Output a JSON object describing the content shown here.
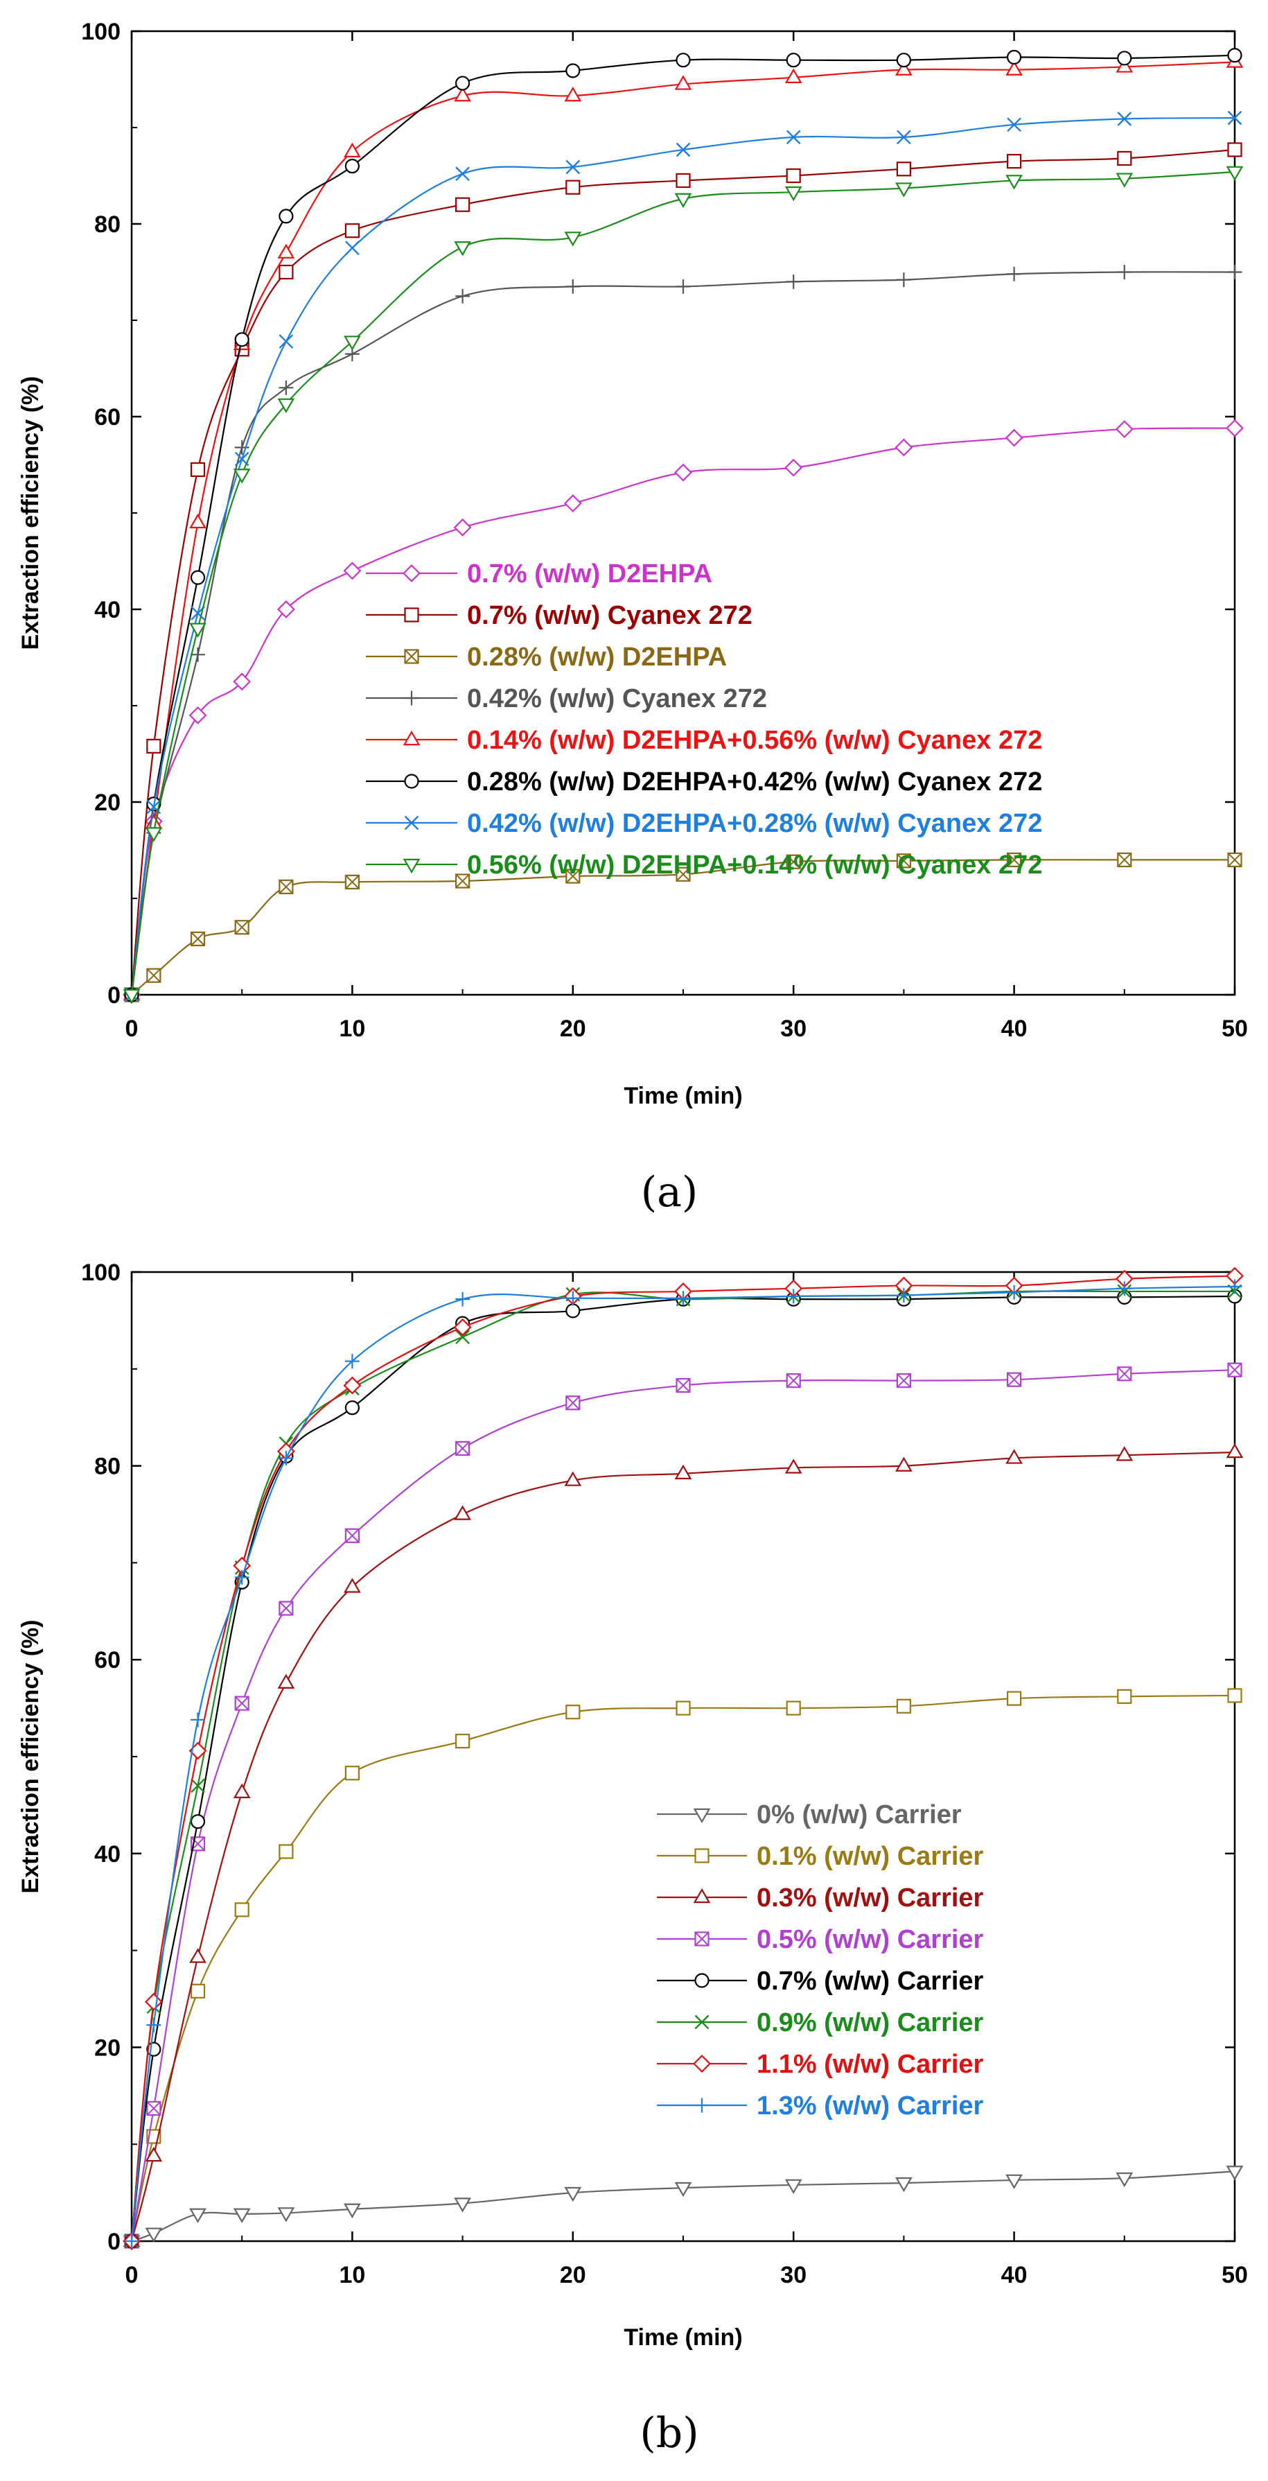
{
  "chart_data": [
    {
      "type": "line",
      "caption": "(a)",
      "xlabel": "Time (min)",
      "ylabel": "Extraction efficiency (%)",
      "xlim": [
        0,
        50
      ],
      "ylim": [
        0,
        100
      ],
      "xticks": [
        0,
        10,
        20,
        30,
        40,
        50
      ],
      "yticks": [
        0,
        20,
        40,
        60,
        80,
        100
      ],
      "legend_position": "center-right",
      "x": [
        0,
        1,
        3,
        5,
        7,
        10,
        15,
        20,
        25,
        30,
        35,
        40,
        45,
        50
      ],
      "series": [
        {
          "name": "0.7% (w/w) D2EHPA",
          "color": "#CC33CC",
          "marker": "diamond",
          "values": [
            0,
            18,
            29,
            32.5,
            40,
            44,
            48.5,
            51,
            54.2,
            54.7,
            56.8,
            57.8,
            58.7,
            58.8
          ]
        },
        {
          "name": "0.7% (w/w) Cyanex 272",
          "color": "#990000",
          "marker": "square",
          "values": [
            0,
            25.8,
            54.5,
            67,
            75,
            79.3,
            82,
            83.8,
            84.5,
            85,
            85.7,
            86.5,
            86.8,
            87.7
          ]
        },
        {
          "name": "0.28% (w/w) D2EHPA",
          "color": "#8B6914",
          "marker": "square-x",
          "values": [
            0,
            2,
            5.8,
            7,
            11.2,
            11.7,
            11.8,
            12.3,
            12.5,
            13.8,
            13.9,
            14,
            14,
            14
          ]
        },
        {
          "name": "0.42% (w/w) Cyanex 272",
          "color": "#555555",
          "marker": "plus",
          "values": [
            0,
            16.8,
            35.3,
            56.8,
            63,
            66.5,
            72.5,
            73.5,
            73.5,
            74,
            74.2,
            74.8,
            75,
            75
          ]
        },
        {
          "name": "0.14% (w/w) D2EHPA+0.56% (w/w) Cyanex 272",
          "color": "#EE1111",
          "marker": "triangle-up",
          "values": [
            0,
            17.8,
            49,
            67.5,
            77,
            87.5,
            93.3,
            93.3,
            94.5,
            95.2,
            96,
            96,
            96.3,
            96.8
          ]
        },
        {
          "name": "0.28% (w/w) D2EHPA+0.42% (w/w) Cyanex 272",
          "color": "#000000",
          "marker": "circle",
          "values": [
            0,
            19.8,
            43.3,
            68,
            80.8,
            86,
            94.6,
            95.9,
            97,
            97,
            97,
            97.3,
            97.2,
            97.5
          ]
        },
        {
          "name": "0.42% (w/w) D2EHPA+0.28% (w/w) Cyanex 272",
          "color": "#1E7FE0",
          "marker": "x",
          "values": [
            0,
            19.5,
            39.6,
            55.6,
            67.8,
            77.5,
            85.2,
            85.9,
            87.7,
            89,
            89,
            90.3,
            90.9,
            91
          ]
        },
        {
          "name": "0.56% (w/w) D2EHPA+0.14% (w/w) Cyanex 272",
          "color": "#1A8C1A",
          "marker": "triangle-down",
          "values": [
            0,
            16.8,
            38,
            54,
            61.3,
            67.8,
            77.6,
            78.6,
            82.6,
            83.3,
            83.7,
            84.5,
            84.7,
            85.4
          ]
        }
      ]
    },
    {
      "type": "line",
      "caption": "(b)",
      "xlabel": "Time (min)",
      "ylabel": "Extraction efficiency (%)",
      "xlim": [
        0,
        50
      ],
      "ylim": [
        0,
        100
      ],
      "xticks": [
        0,
        10,
        20,
        30,
        40,
        50
      ],
      "yticks": [
        0,
        20,
        40,
        60,
        80,
        100
      ],
      "legend_position": "center-right",
      "x": [
        0,
        1,
        3,
        5,
        7,
        10,
        15,
        20,
        25,
        30,
        35,
        40,
        45,
        50
      ],
      "series": [
        {
          "name": "0% (w/w) Carrier",
          "color": "#666666",
          "marker": "triangle-down",
          "values": [
            0,
            0.8,
            2.8,
            2.8,
            2.9,
            3.3,
            3.9,
            5,
            5.5,
            5.8,
            6,
            6.3,
            6.5,
            7.2
          ]
        },
        {
          "name": "0.1% (w/w) Carrier",
          "color": "#9C7A12",
          "marker": "square",
          "values": [
            0,
            10.8,
            25.8,
            34.2,
            40.2,
            48.3,
            51.6,
            54.6,
            55,
            55,
            55.2,
            56,
            56.2,
            56.3
          ]
        },
        {
          "name": "0.3% (w/w) Carrier",
          "color": "#A01010",
          "marker": "triangle-up",
          "values": [
            0,
            8.8,
            29.3,
            46.3,
            57.6,
            67.5,
            75,
            78.5,
            79.2,
            79.8,
            80,
            80.8,
            81.1,
            81.4
          ]
        },
        {
          "name": "0.5% (w/w) Carrier",
          "color": "#B040D0",
          "marker": "square-x",
          "values": [
            0,
            13.7,
            41,
            55.5,
            65.3,
            72.8,
            81.8,
            86.5,
            88.3,
            88.8,
            88.8,
            88.9,
            89.5,
            89.9
          ]
        },
        {
          "name": "0.7% (w/w) Carrier",
          "color": "#000000",
          "marker": "circle",
          "values": [
            0,
            19.8,
            43.3,
            68,
            81,
            86,
            94.7,
            96,
            97.2,
            97.2,
            97.2,
            97.4,
            97.4,
            97.5
          ]
        },
        {
          "name": "0.9% (w/w) Carrier",
          "color": "#1A8C1A",
          "marker": "x",
          "values": [
            0,
            24.2,
            47,
            69.5,
            82.3,
            88,
            93.3,
            97.7,
            97.2,
            97.5,
            97.6,
            98,
            98,
            98
          ]
        },
        {
          "name": "1.1% (w/w) Carrier",
          "color": "#E01010",
          "marker": "diamond",
          "values": [
            0,
            24.7,
            50.6,
            69.7,
            81.5,
            88.3,
            94.3,
            97.5,
            98,
            98.3,
            98.6,
            98.6,
            99.3,
            99.6
          ]
        },
        {
          "name": "1.3% (w/w) Carrier",
          "color": "#1E7FE0",
          "marker": "plus",
          "values": [
            0,
            22.3,
            53.8,
            68.5,
            80.8,
            90.8,
            97.2,
            97.3,
            97.3,
            97.5,
            97.6,
            97.9,
            98.3,
            98.5
          ]
        }
      ]
    }
  ]
}
